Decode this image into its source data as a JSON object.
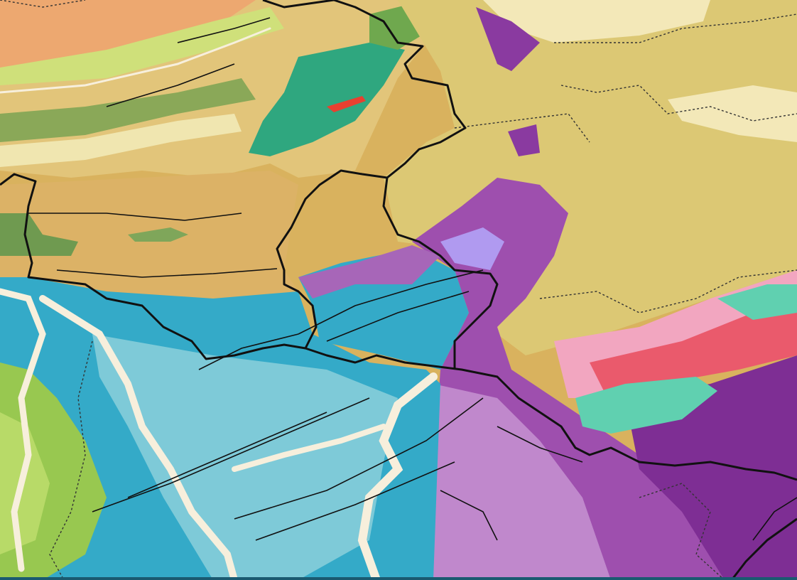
{
  "map": {
    "type": "geological-map",
    "colors": {
      "ochre": "#d9b25e",
      "khaki": "#dcc874",
      "tan": "#e2c57a",
      "cream": "#f3e8b8",
      "orange": "#eda870",
      "olive_green": "#8aa858",
      "teal_green": "#2fa77f",
      "lime": "#98c850",
      "light_green": "#b8da68",
      "cyan_blue": "#34aac8",
      "light_blue": "#7ecad8",
      "pale_blue": "#a6dae4",
      "lilac": "#b985c6",
      "violet": "#9e4fae",
      "purple": "#7e2e94",
      "lavender": "#b09af0",
      "pink": "#f2a6c0",
      "red_pink": "#ea5a6c",
      "mint": "#60d0b0",
      "river": "#f7efdc",
      "boundary": "#111111",
      "bottom_bar": "#1a5a70"
    }
  }
}
